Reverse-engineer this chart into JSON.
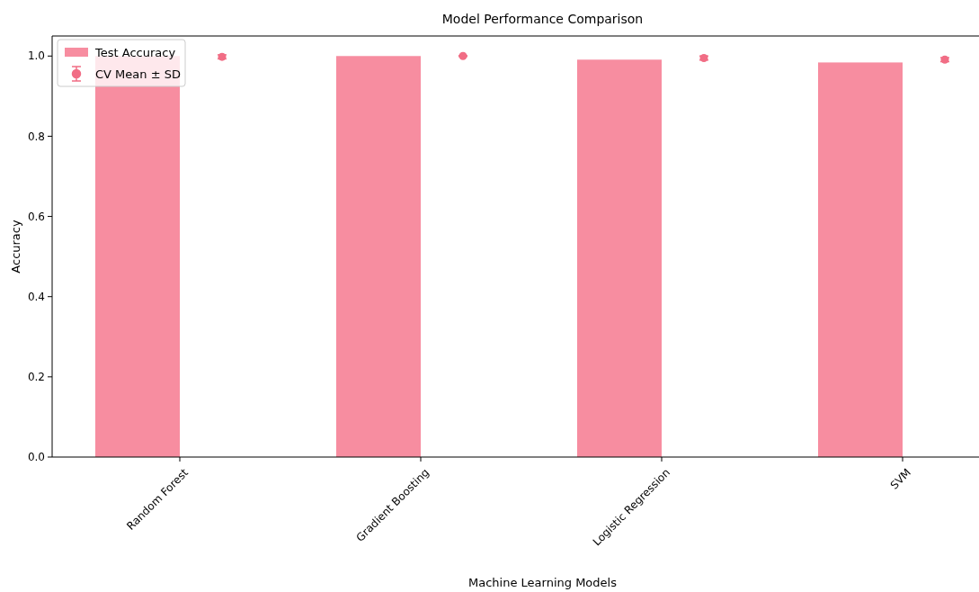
{
  "chart_data": {
    "type": "bar",
    "title": "Model Performance Comparison",
    "xlabel": "Machine Learning Models",
    "ylabel": "Accuracy",
    "categories": [
      "Random Forest",
      "Gradient Boosting",
      "Logistic Regression",
      "SVM"
    ],
    "series": [
      {
        "name": "Test Accuracy",
        "color": "#f78da0",
        "values": [
          1.0,
          1.0,
          0.991,
          0.984
        ]
      },
      {
        "name": "CV Mean ± SD",
        "type": "scatter",
        "color": "#f16d85",
        "x": [
          "Random Forest",
          "Gradient Boosting",
          "Logistic Regression",
          "SVM"
        ],
        "values": [
          0.998,
          1.0,
          0.995,
          0.991
        ],
        "errors": [
          0.005,
          0.001,
          0.005,
          0.005
        ]
      }
    ],
    "ylim": [
      0,
      1.05
    ],
    "yticks": [
      {
        "value": 0,
        "label": "0.0"
      },
      {
        "value": 0.2,
        "label": "0.2"
      },
      {
        "value": 0.4,
        "label": "0.4"
      },
      {
        "value": 0.6,
        "label": "0.6"
      },
      {
        "value": 0.8,
        "label": "0.8"
      },
      {
        "value": 1.0,
        "label": "1.0"
      }
    ],
    "marker": "circle",
    "legend": "top left",
    "grid": false
  }
}
